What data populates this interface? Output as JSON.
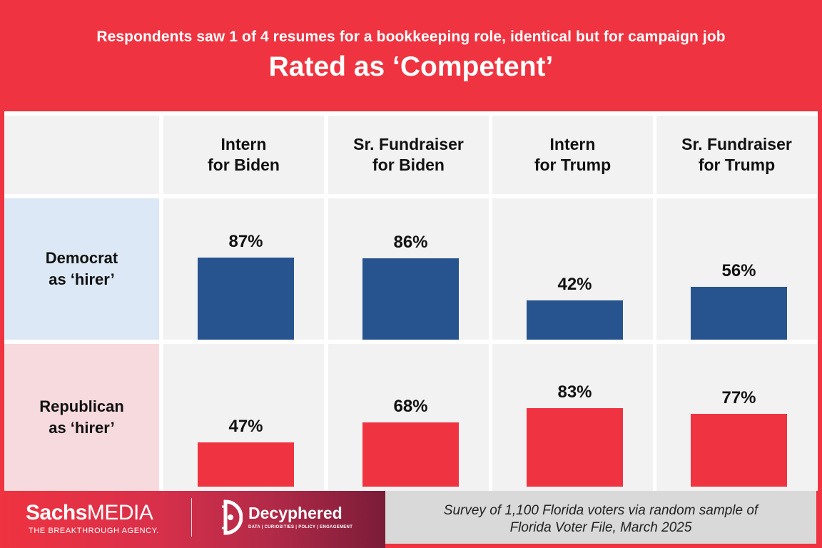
{
  "header": {
    "subtitle": "Respondents saw 1 of 4 resumes for a bookkeeping role, identical but for campaign job",
    "title": "Rated as ‘Competent’"
  },
  "columns": [
    {
      "line1": "Intern",
      "line2": "for Biden"
    },
    {
      "line1": "Sr. Fundraiser",
      "line2": "for Biden"
    },
    {
      "line1": "Intern",
      "line2": "for Trump"
    },
    {
      "line1": "Sr. Fundraiser",
      "line2": "for Trump"
    }
  ],
  "rows": [
    {
      "line1": "Democrat",
      "line2": "as ‘hirer’"
    },
    {
      "line1": "Republican",
      "line2": "as ‘hirer’"
    }
  ],
  "chart_data": {
    "type": "bar",
    "title": "Rated as ‘Competent’",
    "categories": [
      "Intern for Biden",
      "Sr. Fundraiser for Biden",
      "Intern for Trump",
      "Sr. Fundraiser for Trump"
    ],
    "series": [
      {
        "name": "Democrat as ‘hirer’",
        "values": [
          87,
          86,
          42,
          56
        ],
        "labels": [
          "87%",
          "86%",
          "42%",
          "56%"
        ],
        "color": "#27548e"
      },
      {
        "name": "Republican as ‘hirer’",
        "values": [
          47,
          68,
          83,
          77
        ],
        "labels": [
          "47%",
          "68%",
          "83%",
          "77%"
        ],
        "color": "#ef3340"
      }
    ],
    "ylim": [
      0,
      100
    ],
    "legend": "none",
    "grid": false
  },
  "footer": {
    "brand_bold": "Sachs",
    "brand_rest": "MEDIA",
    "brand_tagline": "THE BREAKTHROUGH AGENCY.",
    "partner_name": "Decyphered",
    "partner_tagline": "DATA | CURIOSITIES | POLICY | ENGAGEMENT",
    "note_line1": "Survey of 1,100 Florida voters via random sample of",
    "note_line2": "Florida Voter File, March 2025"
  },
  "colors": {
    "accent_red": "#ef3340",
    "democrat_blue": "#27548e",
    "dem_row_bg": "#dce8f5",
    "rep_row_bg": "#f7dadd"
  }
}
